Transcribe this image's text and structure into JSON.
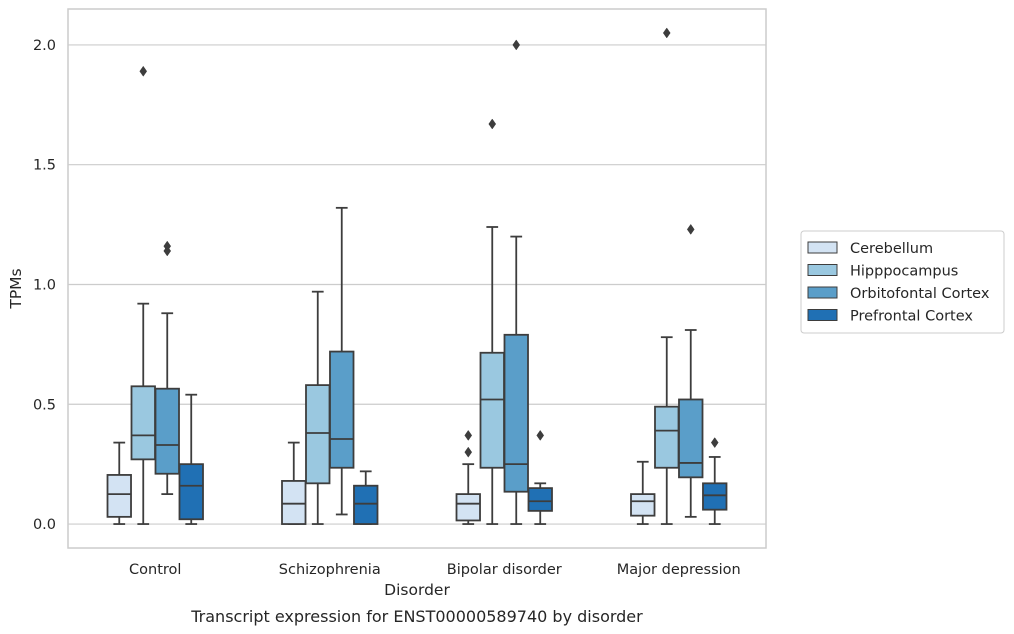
{
  "caption": "Transcript expression for ENST00000589740 by disorder",
  "chart_data": {
    "type": "box",
    "xlabel": "Disorder",
    "ylabel": "TPMs",
    "ylim": [
      -0.1,
      2.15
    ],
    "yticks": [
      0.0,
      0.5,
      1.0,
      1.5,
      2.0
    ],
    "ytick_labels": [
      "0.0",
      "0.5",
      "1.0",
      "1.5",
      "2.0"
    ],
    "grid": "horizontal",
    "legend_position": "right",
    "categories": [
      "Control",
      "Schizophrenia",
      "Bipolar disorder",
      "Major depression"
    ],
    "series": [
      {
        "name": "Cerebellum",
        "color": "#d3e3f3",
        "boxes": [
          {
            "whisker_low": 0.0,
            "q1": 0.03,
            "median": 0.125,
            "q3": 0.205,
            "whisker_high": 0.34,
            "outliers": []
          },
          {
            "whisker_low": 0.0,
            "q1": 0.0,
            "median": 0.085,
            "q3": 0.18,
            "whisker_high": 0.34,
            "outliers": []
          },
          {
            "whisker_low": 0.0,
            "q1": 0.015,
            "median": 0.085,
            "q3": 0.125,
            "whisker_high": 0.25,
            "outliers": [
              0.3,
              0.37
            ]
          },
          {
            "whisker_low": 0.0,
            "q1": 0.035,
            "median": 0.095,
            "q3": 0.125,
            "whisker_high": 0.26,
            "outliers": []
          }
        ]
      },
      {
        "name": "Hipppocampus",
        "color": "#9ac8e0",
        "boxes": [
          {
            "whisker_low": 0.0,
            "q1": 0.27,
            "median": 0.37,
            "q3": 0.575,
            "whisker_high": 0.92,
            "outliers": [
              1.89
            ]
          },
          {
            "whisker_low": 0.0,
            "q1": 0.17,
            "median": 0.38,
            "q3": 0.58,
            "whisker_high": 0.97,
            "outliers": []
          },
          {
            "whisker_low": 0.0,
            "q1": 0.235,
            "median": 0.52,
            "q3": 0.715,
            "whisker_high": 1.24,
            "outliers": [
              1.67
            ]
          },
          {
            "whisker_low": 0.0,
            "q1": 0.235,
            "median": 0.39,
            "q3": 0.49,
            "whisker_high": 0.78,
            "outliers": [
              2.05
            ]
          }
        ]
      },
      {
        "name": "Orbitofontal Cortex",
        "color": "#5a9ec9",
        "boxes": [
          {
            "whisker_low": 0.125,
            "q1": 0.21,
            "median": 0.33,
            "q3": 0.565,
            "whisker_high": 0.88,
            "outliers": [
              1.14,
              1.16
            ]
          },
          {
            "whisker_low": 0.04,
            "q1": 0.235,
            "median": 0.355,
            "q3": 0.72,
            "whisker_high": 1.32,
            "outliers": []
          },
          {
            "whisker_low": 0.0,
            "q1": 0.135,
            "median": 0.25,
            "q3": 0.79,
            "whisker_high": 1.2,
            "outliers": [
              2.0
            ]
          },
          {
            "whisker_low": 0.03,
            "q1": 0.195,
            "median": 0.255,
            "q3": 0.52,
            "whisker_high": 0.81,
            "outliers": [
              1.23
            ]
          }
        ]
      },
      {
        "name": "Prefrontal Cortex",
        "color": "#2070b4",
        "boxes": [
          {
            "whisker_low": 0.0,
            "q1": 0.02,
            "median": 0.16,
            "q3": 0.25,
            "whisker_high": 0.54,
            "outliers": []
          },
          {
            "whisker_low": 0.0,
            "q1": 0.0,
            "median": 0.085,
            "q3": 0.16,
            "whisker_high": 0.22,
            "outliers": []
          },
          {
            "whisker_low": 0.0,
            "q1": 0.055,
            "median": 0.095,
            "q3": 0.15,
            "whisker_high": 0.17,
            "outliers": [
              0.37
            ]
          },
          {
            "whisker_low": 0.0,
            "q1": 0.06,
            "median": 0.12,
            "q3": 0.17,
            "whisker_high": 0.28,
            "outliers": [
              0.34
            ]
          }
        ]
      }
    ]
  }
}
